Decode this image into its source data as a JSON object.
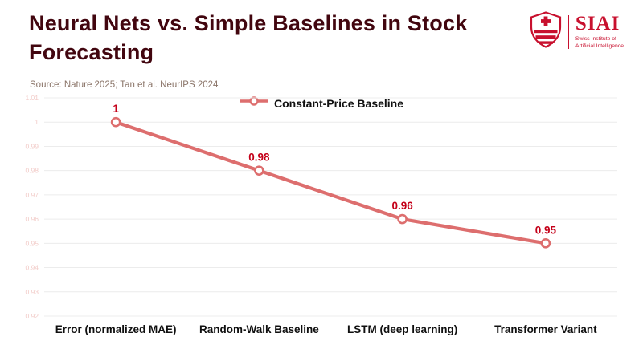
{
  "header": {
    "title": "Neural Nets vs. Simple Baselines in Stock Forecasting",
    "source": "Source: Nature 2025; Tan et al. NeurIPS 2024",
    "logo": {
      "name": "SIAI",
      "tagline1": "Swiss Institute of",
      "tagline2": "Artificial Intelligence"
    }
  },
  "legend": {
    "label": "Constant-Price Baseline"
  },
  "chart_data": {
    "type": "line",
    "title": "Neural Nets vs. Simple Baselines in Stock Forecasting",
    "categories": [
      "Error (normalized MAE)",
      "Random-Walk Baseline",
      "LSTM (deep learning)",
      "Transformer Variant"
    ],
    "series": [
      {
        "name": "Constant-Price Baseline",
        "values": [
          1.0,
          0.98,
          0.96,
          0.95
        ]
      }
    ],
    "data_labels": [
      "1",
      "0.98",
      "0.96",
      "0.95"
    ],
    "xlabel": "",
    "ylabel": "",
    "ylim": [
      0.92,
      1.01
    ],
    "ytick_step": 0.01,
    "grid": true,
    "legend_position": "top-center",
    "colors": {
      "line": "#dd6e6e",
      "marker_fill": "#ffffff",
      "data_label": "#c40019",
      "title": "#42060f",
      "grid": "#ececec",
      "ytick": "#f2ccc9",
      "xtick": "#101010",
      "logo_red": "#c8102e"
    }
  }
}
